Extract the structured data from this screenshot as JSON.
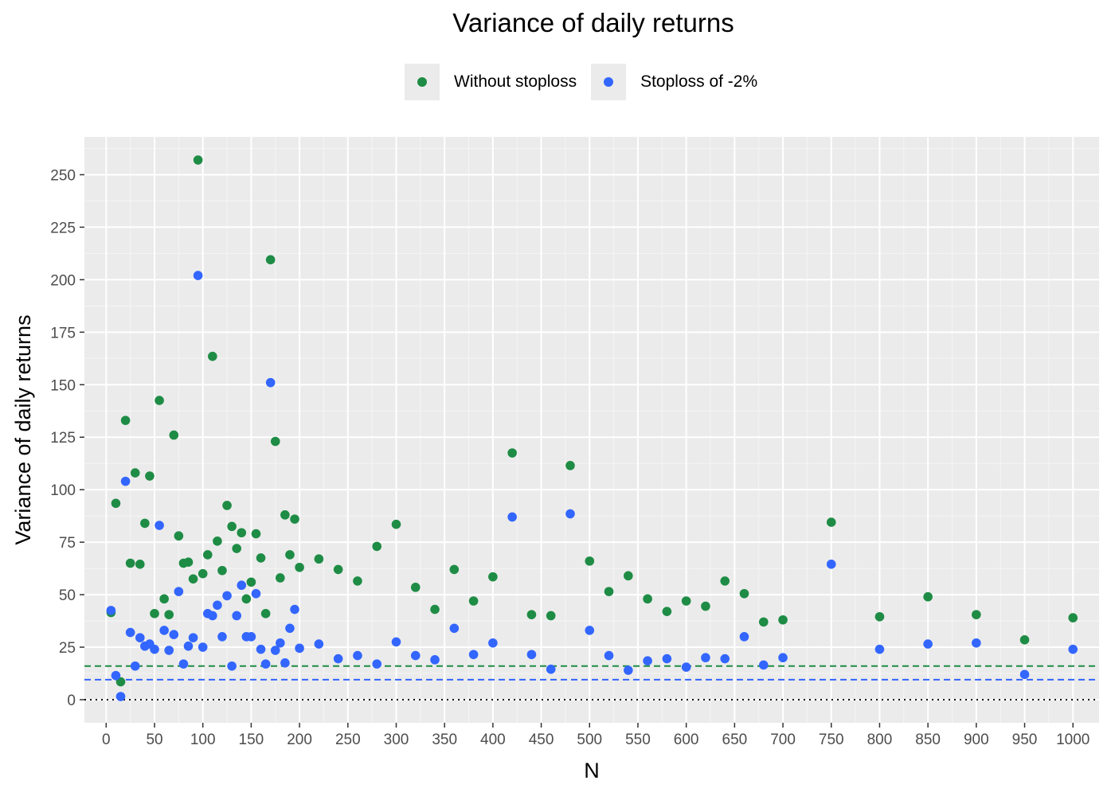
{
  "chart_data": {
    "type": "scatter",
    "title": "Variance of daily returns",
    "xlabel": "N",
    "ylabel": "Variance of daily returns",
    "xlim": [
      -22.5,
      1027
    ],
    "ylim": [
      -11,
      268
    ],
    "x_ticks": [
      0,
      50,
      100,
      150,
      200,
      250,
      300,
      350,
      400,
      450,
      500,
      550,
      600,
      650,
      700,
      750,
      800,
      850,
      900,
      950,
      1000
    ],
    "x_minor": [
      25,
      75,
      125,
      175,
      225,
      275,
      325,
      375,
      425,
      475,
      525,
      575,
      625,
      675,
      725,
      775,
      825,
      875,
      925,
      975
    ],
    "x_tick_labels": [
      "0",
      "50",
      "100",
      "150",
      "200",
      "250",
      "300",
      "350",
      "400",
      "450",
      "500",
      "550",
      "600",
      "650",
      "700",
      "750",
      "800",
      "850",
      "900",
      "950",
      "1000"
    ],
    "y_ticks": [
      0,
      25,
      50,
      75,
      100,
      125,
      150,
      175,
      200,
      225,
      250
    ],
    "y_tick_labels": [
      "0",
      "25",
      "50",
      "75",
      "100",
      "125",
      "150",
      "175",
      "200",
      "225",
      "250"
    ],
    "grid": true,
    "legend_position": "top",
    "reference_lines": [
      {
        "y": 16,
        "color": "#1e8c45",
        "style": "dashed"
      },
      {
        "y": 9.5,
        "color": "#3366ff",
        "style": "dashed"
      },
      {
        "y": 0,
        "color": "#000000",
        "style": "dotted"
      }
    ],
    "series": [
      {
        "name": "Without stoploss",
        "color": "#1e8c45",
        "points": [
          [
            5,
            41.5
          ],
          [
            10,
            93.5
          ],
          [
            15,
            8.5
          ],
          [
            20,
            133
          ],
          [
            25,
            65
          ],
          [
            30,
            108
          ],
          [
            35,
            64.5
          ],
          [
            40,
            84
          ],
          [
            45,
            106.5
          ],
          [
            50,
            41
          ],
          [
            55,
            142.5
          ],
          [
            60,
            48
          ],
          [
            65,
            40.5
          ],
          [
            70,
            126
          ],
          [
            75,
            78
          ],
          [
            80,
            65
          ],
          [
            85,
            65.5
          ],
          [
            90,
            57.5
          ],
          [
            95,
            257
          ],
          [
            100,
            60
          ],
          [
            105,
            69
          ],
          [
            110,
            163.5
          ],
          [
            115,
            75.5
          ],
          [
            120,
            61.5
          ],
          [
            125,
            92.5
          ],
          [
            130,
            82.5
          ],
          [
            135,
            72
          ],
          [
            140,
            79.5
          ],
          [
            145,
            48
          ],
          [
            150,
            56
          ],
          [
            155,
            79
          ],
          [
            160,
            67.5
          ],
          [
            165,
            41
          ],
          [
            170,
            209.5
          ],
          [
            175,
            123
          ],
          [
            180,
            58
          ],
          [
            185,
            88
          ],
          [
            190,
            69
          ],
          [
            195,
            86
          ],
          [
            200,
            63
          ],
          [
            220,
            67
          ],
          [
            240,
            62
          ],
          [
            260,
            56.5
          ],
          [
            280,
            73
          ],
          [
            300,
            83.5
          ],
          [
            320,
            53.5
          ],
          [
            340,
            43
          ],
          [
            360,
            62
          ],
          [
            380,
            47
          ],
          [
            400,
            58.5
          ],
          [
            420,
            117.5
          ],
          [
            440,
            40.5
          ],
          [
            460,
            40
          ],
          [
            480,
            111.5
          ],
          [
            500,
            66
          ],
          [
            520,
            51.5
          ],
          [
            540,
            59
          ],
          [
            560,
            48
          ],
          [
            580,
            42
          ],
          [
            600,
            47
          ],
          [
            620,
            44.5
          ],
          [
            640,
            56.5
          ],
          [
            660,
            50.5
          ],
          [
            680,
            37
          ],
          [
            700,
            38
          ],
          [
            750,
            84.5
          ],
          [
            800,
            39.5
          ],
          [
            850,
            49
          ],
          [
            900,
            40.5
          ],
          [
            950,
            28.5
          ],
          [
            1000,
            39
          ]
        ]
      },
      {
        "name": "Stoploss of -2%",
        "color": "#3366ff",
        "points": [
          [
            5,
            42.5
          ],
          [
            10,
            11.5
          ],
          [
            15,
            1.5
          ],
          [
            20,
            104
          ],
          [
            25,
            32
          ],
          [
            30,
            16
          ],
          [
            35,
            29.5
          ],
          [
            40,
            25.5
          ],
          [
            45,
            26.5
          ],
          [
            50,
            24
          ],
          [
            55,
            83
          ],
          [
            60,
            33
          ],
          [
            65,
            23.5
          ],
          [
            70,
            31
          ],
          [
            75,
            51.5
          ],
          [
            80,
            17
          ],
          [
            85,
            25.5
          ],
          [
            90,
            29.5
          ],
          [
            95,
            202
          ],
          [
            100,
            25
          ],
          [
            105,
            41
          ],
          [
            110,
            40
          ],
          [
            115,
            45
          ],
          [
            120,
            30
          ],
          [
            125,
            49.5
          ],
          [
            130,
            16
          ],
          [
            135,
            40
          ],
          [
            140,
            54.5
          ],
          [
            145,
            30
          ],
          [
            150,
            30
          ],
          [
            155,
            50.5
          ],
          [
            160,
            24
          ],
          [
            165,
            17
          ],
          [
            170,
            151
          ],
          [
            175,
            23.5
          ],
          [
            180,
            27
          ],
          [
            185,
            17.5
          ],
          [
            190,
            34
          ],
          [
            195,
            43
          ],
          [
            200,
            24.5
          ],
          [
            220,
            26.5
          ],
          [
            240,
            19.5
          ],
          [
            260,
            21
          ],
          [
            280,
            17
          ],
          [
            300,
            27.5
          ],
          [
            320,
            21
          ],
          [
            340,
            19
          ],
          [
            360,
            34
          ],
          [
            380,
            21.5
          ],
          [
            400,
            27
          ],
          [
            420,
            87
          ],
          [
            440,
            21.5
          ],
          [
            460,
            14.5
          ],
          [
            480,
            88.5
          ],
          [
            500,
            33
          ],
          [
            520,
            21
          ],
          [
            540,
            14
          ],
          [
            560,
            18.5
          ],
          [
            580,
            19.5
          ],
          [
            600,
            15.5
          ],
          [
            620,
            20
          ],
          [
            640,
            19.5
          ],
          [
            660,
            30
          ],
          [
            680,
            16.5
          ],
          [
            700,
            20
          ],
          [
            750,
            64.5
          ],
          [
            800,
            24
          ],
          [
            850,
            26.5
          ],
          [
            900,
            27
          ],
          [
            950,
            12
          ],
          [
            1000,
            24
          ]
        ]
      }
    ]
  }
}
